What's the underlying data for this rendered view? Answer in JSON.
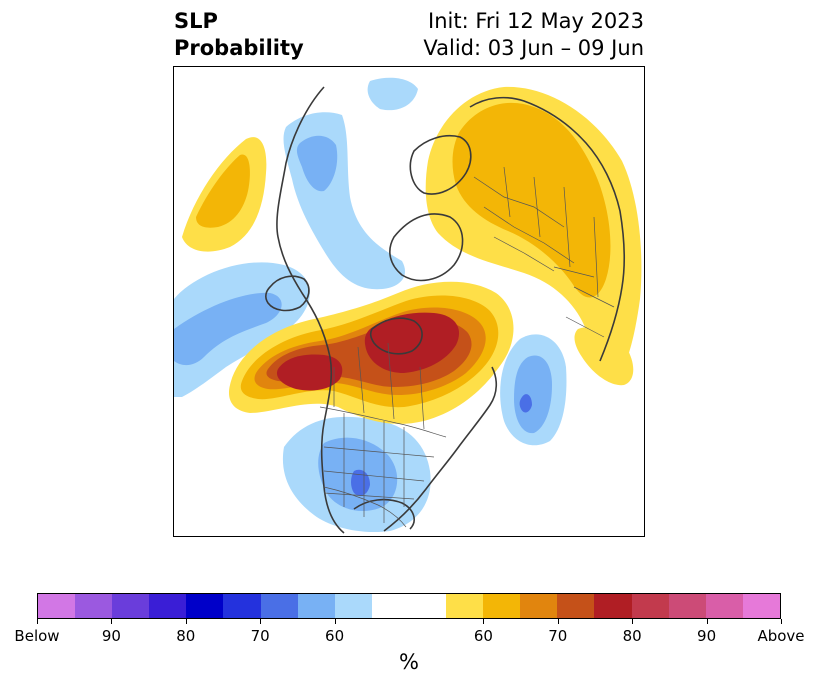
{
  "header": {
    "title_line1": "SLP",
    "title_line2": "Probability",
    "init": "Init: Fri 12 May 2023",
    "valid": "Valid: 03 Jun – 09 Jun"
  },
  "map": {
    "name": "SLP probability map",
    "colors": {
      "land_line": "#3a3a3a",
      "border_line": "#555555",
      "blue1": "#aad9fb",
      "blue2": "#78b1f4",
      "blue3": "#4a6fe6",
      "yellow1": "#fedf48",
      "yellow2": "#f3b606",
      "orange": "#e1850e",
      "rust": "#c55119",
      "red": "#b01e24"
    }
  },
  "colorbar": {
    "colors": [
      "#d277e5",
      "#9b59e0",
      "#6a3ddb",
      "#3a1ed6",
      "#0000c9",
      "#2432dd",
      "#4a6fe6",
      "#78b1f4",
      "#aad9fb",
      "#ffffff",
      "#ffffff",
      "#fedf48",
      "#f3b606",
      "#e1850e",
      "#c55119",
      "#b01e24",
      "#c23a4d",
      "#cc4b77",
      "#d95ea8",
      "#e679d9"
    ],
    "tick_labels": [
      "Below",
      "90",
      "80",
      "70",
      "60",
      "60",
      "70",
      "80",
      "90",
      "Above"
    ],
    "unit": "%"
  }
}
